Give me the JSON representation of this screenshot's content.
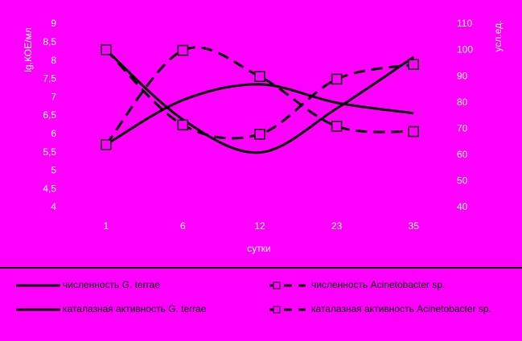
{
  "chart_data": {
    "type": "line",
    "x_label": "сутки",
    "y_label": "lg,КОЕ/мл",
    "y2_label": "усл.ед.",
    "categories": [
      "1",
      "6",
      "12",
      "23",
      "35"
    ],
    "ylim": [
      4,
      9
    ],
    "yticks": [
      4,
      {
        "value": 4.5,
        "label": "4,5"
      },
      5,
      {
        "value": 5.5,
        "label": "5,5"
      },
      6,
      {
        "value": 6.5,
        "label": "6,5"
      },
      7,
      {
        "value": 7.5,
        "label": "7,5"
      },
      8,
      {
        "value": 8.5,
        "label": "8,5"
      },
      9
    ],
    "y2lim": [
      40,
      110
    ],
    "y2ticks": [
      40,
      50,
      60,
      70,
      80,
      90,
      100,
      110
    ],
    "series": [
      {
        "name": "численность G. terrae",
        "color": "#000000",
        "line_style": "solid",
        "marker": "none",
        "values": [
          8.3,
          6.4,
          5.5,
          6.7,
          8.1
        ]
      },
      {
        "name": "численность Acinetobacter sp.",
        "color": "#000000",
        "line_style": "dashed",
        "marker": "square",
        "values": [
          8.3,
          6.25,
          6.0,
          7.5,
          7.9
        ]
      },
      {
        "name": "каталазная активность G. terrae",
        "color": "#000000",
        "line_style": "solid",
        "marker": "none",
        "axis": "y2",
        "values": [
          64,
          81,
          87,
          80,
          76
        ]
      },
      {
        "name": "каталазная активность Acinetobacter sp.",
        "color": "#000000",
        "line_style": "dashed",
        "marker": "square",
        "axis": "y2",
        "values": [
          64,
          100,
          90,
          71,
          69
        ]
      }
    ]
  }
}
